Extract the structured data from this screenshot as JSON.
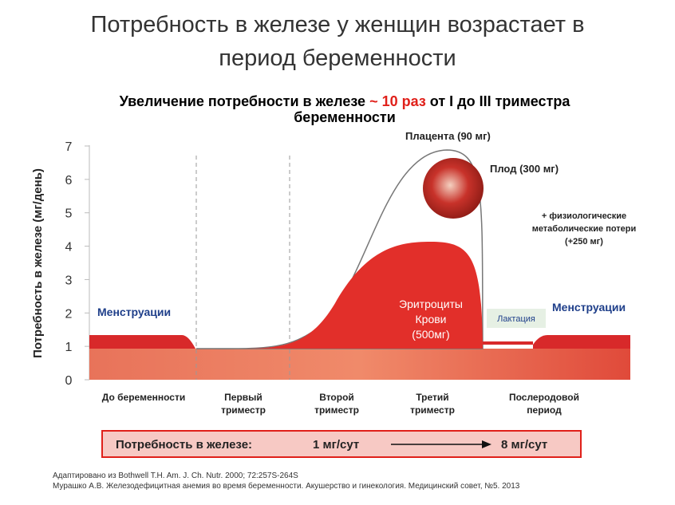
{
  "slide": {
    "title": [
      "Потребность в железе у женщин возрастает в",
      "период беременности"
    ],
    "subtitle": {
      "before": "Увеличение потребности в железе",
      "highlight": "~ 10 раз",
      "after": "от I до III триместра",
      "line2": "беременности"
    },
    "chart": {
      "y_label": "Потребность в железе (мг/день)",
      "yticks": [
        0,
        1,
        2,
        3,
        4,
        5,
        6,
        7
      ],
      "periods": [
        [
          "До беременности"
        ],
        [
          "Первый",
          "триместр"
        ],
        [
          "Второй",
          "триместр"
        ],
        [
          "Третий",
          "триместр"
        ],
        [
          "Послеродовой",
          "период"
        ]
      ],
      "annotations": {
        "menstruation_left": "Менструации",
        "menstruation_right": "Менструации",
        "placenta": "Плацента (90 мг)",
        "fetus": "Плод (300 мг)",
        "losses": [
          "+ физиологические",
          "метаболические потери",
          "(+250 мг)"
        ],
        "erythrocytes": [
          "Эритроциты",
          "Крови",
          "(500мг)"
        ],
        "lactation": "Лактация"
      }
    },
    "summary": {
      "label": "Потребность в железе:",
      "from": "1 мг/сут",
      "to": "8 мг/сут"
    },
    "footnotes": [
      "Адаптировано из Bothwell T.H. Am. J. Ch. Nutr. 2000; 72:257S-264S",
      "Мурашко А.В. Железодефицитная анемия во время беременности. Акушерство и гинекология. Медицинский совет, №5. 2013"
    ]
  }
}
